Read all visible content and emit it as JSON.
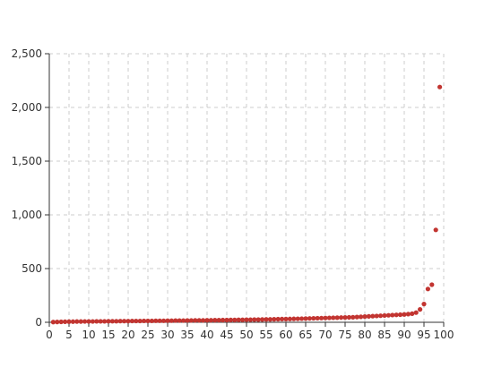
{
  "colors": {
    "point": "#c23531",
    "grid": "#cccccc",
    "axis": "#333333"
  },
  "chart_data": {
    "type": "scatter",
    "title": "",
    "xlabel": "",
    "ylabel": "",
    "xlim": [
      0,
      100
    ],
    "ylim": [
      0,
      2500
    ],
    "xticks": [
      0,
      5,
      10,
      15,
      20,
      25,
      30,
      35,
      40,
      45,
      50,
      55,
      60,
      65,
      70,
      75,
      80,
      85,
      90,
      95,
      100
    ],
    "xtick_labels": [
      "0",
      "5",
      "10",
      "15",
      "20",
      "25",
      "30",
      "35",
      "40",
      "45",
      "50",
      "55",
      "60",
      "65",
      "70",
      "75",
      "80",
      "85",
      "90",
      "95",
      "100"
    ],
    "yticks": [
      0,
      500,
      1000,
      1500,
      2000,
      2500
    ],
    "ytick_labels": [
      "0",
      "500",
      "1,000",
      "1,500",
      "2,000",
      "2,500"
    ],
    "grid": true,
    "legend": "none",
    "series": [
      {
        "x": [
          1,
          2,
          3,
          4,
          5,
          6,
          7,
          8,
          9,
          10,
          11,
          12,
          13,
          14,
          15,
          16,
          17,
          18,
          19,
          20,
          21,
          22,
          23,
          24,
          25,
          26,
          27,
          28,
          29,
          30,
          31,
          32,
          33,
          34,
          35,
          36,
          37,
          38,
          39,
          40,
          41,
          42,
          43,
          44,
          45,
          46,
          47,
          48,
          49,
          50,
          51,
          52,
          53,
          54,
          55,
          56,
          57,
          58,
          59,
          60,
          61,
          62,
          63,
          64,
          65,
          66,
          67,
          68,
          69,
          70,
          71,
          72,
          73,
          74,
          75,
          76,
          77,
          78,
          79,
          80,
          81,
          82,
          83,
          84,
          85,
          86,
          87,
          88,
          89,
          90,
          91,
          92,
          93,
          94,
          95,
          96,
          97,
          98,
          99
        ],
        "y": [
          2,
          3,
          4,
          5,
          6,
          6,
          7,
          7,
          8,
          8,
          8,
          9,
          9,
          9,
          10,
          10,
          10,
          11,
          11,
          11,
          12,
          12,
          12,
          13,
          13,
          13,
          14,
          14,
          14,
          15,
          15,
          16,
          16,
          16,
          17,
          17,
          18,
          18,
          18,
          19,
          19,
          20,
          20,
          21,
          21,
          22,
          22,
          23,
          23,
          24,
          24,
          25,
          25,
          26,
          27,
          27,
          28,
          29,
          30,
          30,
          31,
          32,
          33,
          34,
          35,
          36,
          37,
          38,
          39,
          40,
          41,
          42,
          43,
          44,
          45,
          46,
          47,
          49,
          51,
          53,
          55,
          57,
          59,
          61,
          63,
          65,
          67,
          69,
          71,
          73,
          76,
          80,
          90,
          120,
          170,
          310,
          350,
          860,
          2190
        ]
      }
    ]
  }
}
